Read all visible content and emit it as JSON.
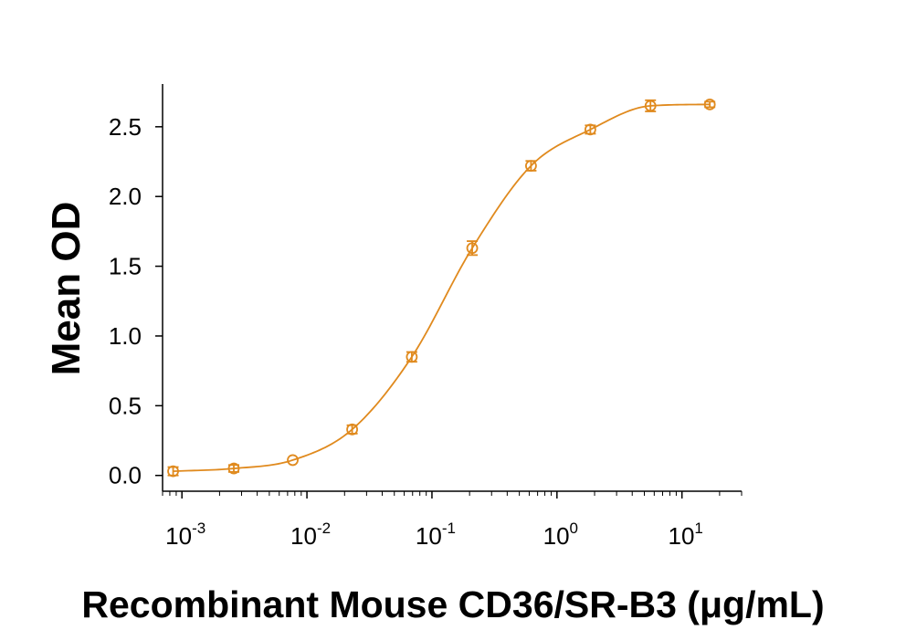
{
  "chart_data": {
    "type": "scatter",
    "title": "",
    "xlabel": "Recombinant Mouse CD36/SR-B3 (μg/mL)",
    "ylabel": "Mean OD",
    "x_scale": "log",
    "xlim": [
      0.0007,
      30
    ],
    "ylim": [
      -0.1,
      2.8
    ],
    "x_ticks": [
      {
        "value": 0.001,
        "base": "10",
        "exp": "-3"
      },
      {
        "value": 0.01,
        "base": "10",
        "exp": "-2"
      },
      {
        "value": 0.1,
        "base": "10",
        "exp": "-1"
      },
      {
        "value": 1,
        "base": "10",
        "exp": "0"
      },
      {
        "value": 10,
        "base": "10",
        "exp": "1"
      }
    ],
    "y_ticks": [
      {
        "value": 0.0,
        "label": "0.0"
      },
      {
        "value": 0.5,
        "label": "0.5"
      },
      {
        "value": 1.0,
        "label": "1.0"
      },
      {
        "value": 1.5,
        "label": "1.5"
      },
      {
        "value": 2.0,
        "label": "2.0"
      },
      {
        "value": 2.5,
        "label": "2.5"
      }
    ],
    "grid": false,
    "legend": "none",
    "color": "#e08a1e",
    "series": [
      {
        "points": [
          {
            "x": 0.00085,
            "y": 0.03,
            "err": 0.03
          },
          {
            "x": 0.0026,
            "y": 0.05,
            "err": 0.025
          },
          {
            "x": 0.0077,
            "y": 0.11,
            "err": 0.0
          },
          {
            "x": 0.023,
            "y": 0.33,
            "err": 0.03
          },
          {
            "x": 0.069,
            "y": 0.85,
            "err": 0.035
          },
          {
            "x": 0.21,
            "y": 1.63,
            "err": 0.05
          },
          {
            "x": 0.62,
            "y": 2.22,
            "err": 0.035
          },
          {
            "x": 1.85,
            "y": 2.48,
            "err": 0.03
          },
          {
            "x": 5.6,
            "y": 2.65,
            "err": 0.04
          },
          {
            "x": 16.7,
            "y": 2.66,
            "err": 0.02
          }
        ]
      }
    ]
  }
}
